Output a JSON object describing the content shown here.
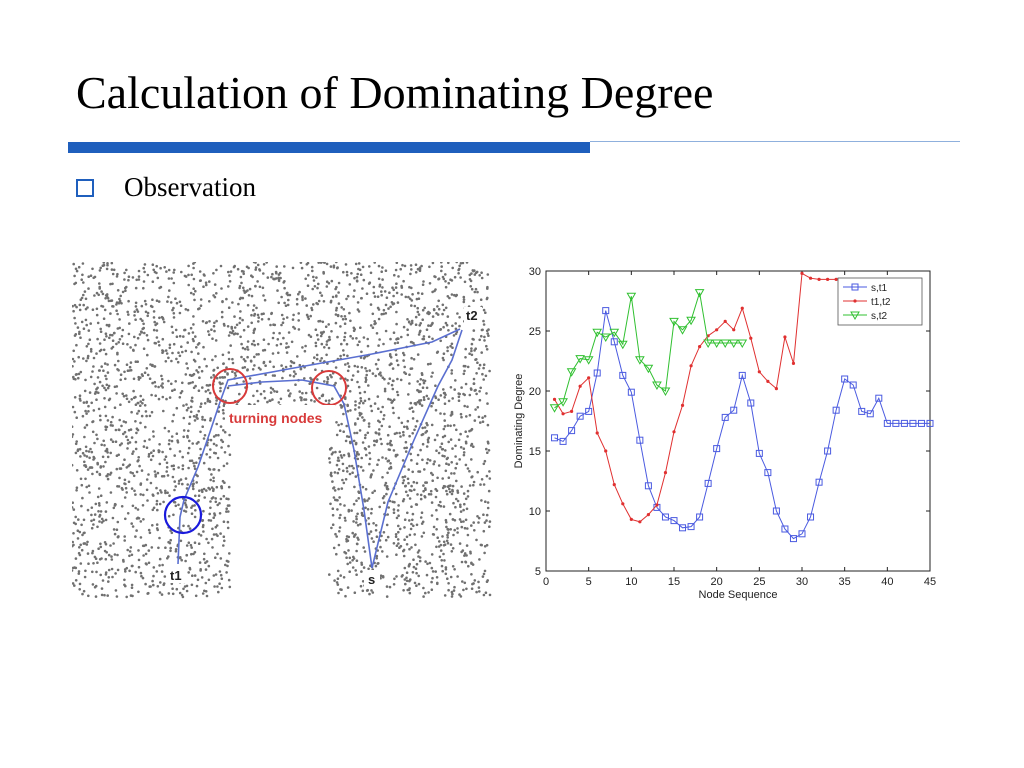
{
  "slide": {
    "title": "Calculation of Dominating Degree",
    "bullet": "Observation"
  },
  "figure": {
    "label_t2": "t2",
    "label_t1": "t1",
    "label_s": "s",
    "annotation": "turning nodes",
    "colors": {
      "path": "#5a6fd0",
      "turning_circle": "#d83a3a",
      "highlight_circle": "#1a1adc",
      "dots": "#707070"
    }
  },
  "chart_data": {
    "type": "line",
    "title": "",
    "xlabel": "Node Sequence",
    "ylabel": "Dominating Degree",
    "xlim": [
      0,
      45
    ],
    "ylim": [
      5,
      30
    ],
    "xticks": [
      0,
      5,
      10,
      15,
      20,
      25,
      30,
      35,
      40,
      45
    ],
    "yticks": [
      5,
      10,
      15,
      20,
      25,
      30
    ],
    "grid": false,
    "legend_position": "top-right",
    "series": [
      {
        "name": "s,t1",
        "color": "#4a5ae0",
        "marker": "square",
        "x": [
          1,
          2,
          3,
          4,
          5,
          6,
          7,
          8,
          9,
          10,
          11,
          12,
          13,
          14,
          15,
          16,
          17,
          18,
          19,
          20,
          21,
          22,
          23,
          24,
          25,
          26,
          27,
          28,
          29,
          30,
          31,
          32,
          33,
          34,
          35,
          36,
          37,
          38,
          39,
          40,
          41,
          42,
          43,
          44,
          45
        ],
        "y": [
          16.1,
          15.8,
          16.7,
          17.9,
          18.3,
          21.5,
          26.7,
          24.1,
          21.3,
          19.9,
          15.9,
          12.1,
          10.3,
          9.5,
          9.2,
          8.6,
          8.7,
          9.5,
          12.3,
          15.2,
          17.8,
          18.4,
          21.3,
          19.0,
          14.8,
          13.2,
          10.0,
          8.5,
          7.7,
          8.1,
          9.5,
          12.4,
          15.0,
          18.4,
          21.0,
          20.5,
          18.3,
          18.1,
          19.4,
          17.3,
          17.3,
          17.3,
          17.3,
          17.3,
          17.3
        ]
      },
      {
        "name": "t1,t2",
        "color": "#e03030",
        "marker": "dot",
        "x": [
          1,
          2,
          3,
          4,
          5,
          6,
          7,
          8,
          9,
          10,
          11,
          12,
          13,
          14,
          15,
          16,
          17,
          18,
          19,
          20,
          21,
          22,
          23,
          24,
          25,
          26,
          27,
          28,
          29,
          30,
          31,
          32,
          33,
          34
        ],
        "y": [
          19.3,
          18.1,
          18.3,
          20.4,
          21.1,
          16.5,
          15.0,
          12.2,
          10.6,
          9.3,
          9.1,
          9.7,
          10.5,
          13.2,
          16.6,
          18.8,
          22.1,
          23.7,
          24.6,
          25.1,
          25.8,
          25.1,
          26.9,
          24.4,
          21.6,
          20.8,
          20.2,
          24.5,
          22.3,
          29.8,
          29.4,
          29.3,
          29.3,
          29.3
        ]
      },
      {
        "name": "s,t2",
        "color": "#30c030",
        "marker": "triangle-down",
        "x": [
          1,
          2,
          3,
          4,
          5,
          6,
          7,
          8,
          9,
          10,
          11,
          12,
          13,
          14,
          15,
          16,
          17,
          18,
          19,
          20,
          21,
          22,
          23
        ],
        "y": [
          18.6,
          19.1,
          21.6,
          22.7,
          22.6,
          24.9,
          24.5,
          24.9,
          23.9,
          27.9,
          22.6,
          21.9,
          20.5,
          20.0,
          25.8,
          25.1,
          25.9,
          28.2,
          24.0,
          24.0,
          24.0,
          24.0,
          24.0
        ]
      }
    ]
  }
}
